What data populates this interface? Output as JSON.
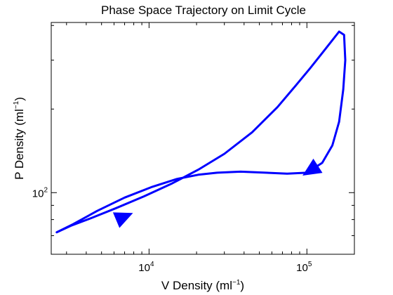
{
  "chart_data": {
    "type": "line",
    "title": "Phase Space Trajectory on Limit Cycle",
    "xlabel": {
      "prefix": "V Density (ml",
      "exponent": "−1",
      "suffix": ")"
    },
    "ylabel": {
      "prefix": "P Density (ml",
      "exponent": "−1",
      "suffix": ")"
    },
    "x_scale": "log",
    "y_scale": "log",
    "xlim": [
      2400,
      200000
    ],
    "ylim": [
      60,
      410
    ],
    "x_tick_labels": [
      {
        "value": 10000,
        "base": "10",
        "exponent": "4"
      },
      {
        "value": 100000,
        "base": "10",
        "exponent": "5"
      }
    ],
    "y_tick_labels": [
      {
        "value": 100,
        "base": "10",
        "exponent": "2"
      }
    ],
    "x_minor_ticks": [
      3000,
      4000,
      5000,
      6000,
      7000,
      8000,
      9000,
      20000,
      30000,
      40000,
      50000,
      60000,
      70000,
      80000,
      90000
    ],
    "y_minor_ticks": [
      70,
      80,
      90,
      200,
      300,
      400
    ],
    "grid": false,
    "legend": "none",
    "series": [
      {
        "color": "#0000ff",
        "x": [
          2600,
          3200,
          4300,
          6200,
          9300,
          14000,
          20500,
          30000,
          45000,
          65000,
          85000,
          105000,
          125000,
          145000,
          160000,
          172000,
          175000,
          170000,
          160000,
          145000,
          125000,
          100000,
          75000,
          55000,
          38000,
          27000,
          20500,
          15000,
          10500,
          7000,
          4700,
          3300,
          2600
        ],
        "y": [
          72,
          76,
          81,
          88,
          97,
          108,
          121,
          138,
          165,
          203,
          243,
          281,
          318,
          354,
          380,
          370,
          300,
          235,
          180,
          148,
          128,
          118,
          117,
          118,
          119,
          118,
          116,
          112,
          105,
          96,
          86,
          77,
          72
        ]
      }
    ],
    "arrows": [
      {
        "x": 7000,
        "y": 82,
        "direction": "along-path",
        "color": "#0000ff"
      },
      {
        "x": 105000,
        "y": 120,
        "direction": "along-path",
        "color": "#0000ff"
      }
    ]
  }
}
